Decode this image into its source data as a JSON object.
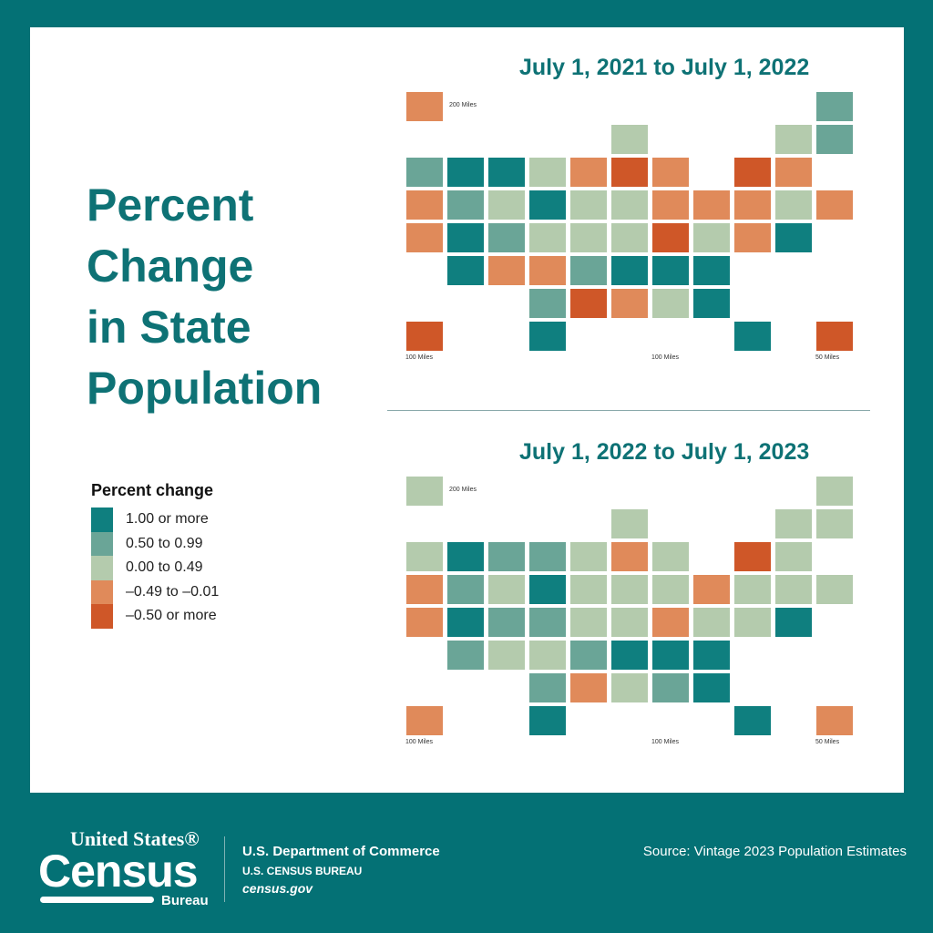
{
  "title": [
    "Percent",
    "Change",
    "in State",
    "Population"
  ],
  "legend": {
    "title": "Percent change",
    "items": [
      {
        "label": "1.00 or more",
        "color": "#0f7f7f"
      },
      {
        "label": "0.50 to 0.99",
        "color": "#6aa597"
      },
      {
        "label": "0.00 to 0.49",
        "color": "#b4cbad"
      },
      {
        "label": "–0.49 to –0.01",
        "color": "#e08a5a"
      },
      {
        "label": "–0.50 or more",
        "color": "#cf5728"
      }
    ]
  },
  "maps": [
    {
      "title": "July 1, 2021 to July 1, 2022",
      "scales": [
        "200 Miles",
        "100 Miles",
        "100 Miles",
        "50 Miles"
      ],
      "states": {
        "WA": 1,
        "OR": 3,
        "CA": 3,
        "ID": 0,
        "MT": 0,
        "WY": 2,
        "NV": 1,
        "UT": 0,
        "AZ": 0,
        "CO": 1,
        "NM": 3,
        "ND": 2,
        "SD": 0,
        "NE": 2,
        "KS": 3,
        "OK": 1,
        "TX": 0,
        "MN": 3,
        "IA": 2,
        "MO": 2,
        "AR": 1,
        "LA": 4,
        "WI": 2,
        "IL": 4,
        "MI": 3,
        "IN": 2,
        "OH": 3,
        "KY": 2,
        "TN": 0,
        "MS": 3,
        "AL": 2,
        "GA": 0,
        "FL": 0,
        "SC": 0,
        "NC": 0,
        "VA": 2,
        "WV": 4,
        "PA": 3,
        "NY": 4,
        "NJ": 3,
        "DE": 0,
        "MD": 3,
        "CT": 2,
        "MA": 3,
        "RI": 3,
        "VT": 2,
        "NH": 1,
        "ME": 1,
        "AK": 3,
        "HI": 4,
        "PR": 4
      }
    },
    {
      "title": "July 1, 2022 to July 1, 2023",
      "scales": [
        "200 Miles",
        "100 Miles",
        "100 Miles",
        "50 Miles"
      ],
      "states": {
        "WA": 2,
        "OR": 3,
        "CA": 3,
        "ID": 0,
        "MT": 1,
        "WY": 2,
        "NV": 1,
        "UT": 0,
        "AZ": 1,
        "CO": 1,
        "NM": 2,
        "ND": 1,
        "SD": 0,
        "NE": 1,
        "KS": 2,
        "OK": 1,
        "TX": 0,
        "MN": 2,
        "IA": 2,
        "MO": 2,
        "AR": 1,
        "LA": 3,
        "WI": 2,
        "IL": 3,
        "MI": 2,
        "IN": 2,
        "OH": 2,
        "KY": 2,
        "TN": 0,
        "MS": 2,
        "AL": 1,
        "GA": 0,
        "FL": 0,
        "SC": 0,
        "NC": 0,
        "VA": 2,
        "WV": 3,
        "PA": 3,
        "NY": 4,
        "NJ": 2,
        "DE": 0,
        "MD": 2,
        "CT": 2,
        "MA": 2,
        "RI": 2,
        "VT": 2,
        "NH": 2,
        "ME": 2,
        "AK": 2,
        "HI": 3,
        "PR": 3
      }
    }
  ],
  "footer": {
    "logo_top": "United States®",
    "logo_main": "Census",
    "logo_bottom": "Bureau",
    "dept": "U.S. Department of Commerce",
    "bureau": "U.S. CENSUS BUREAU",
    "site": "census.gov",
    "source": "Source: Vintage 2023 Population Estimates"
  }
}
